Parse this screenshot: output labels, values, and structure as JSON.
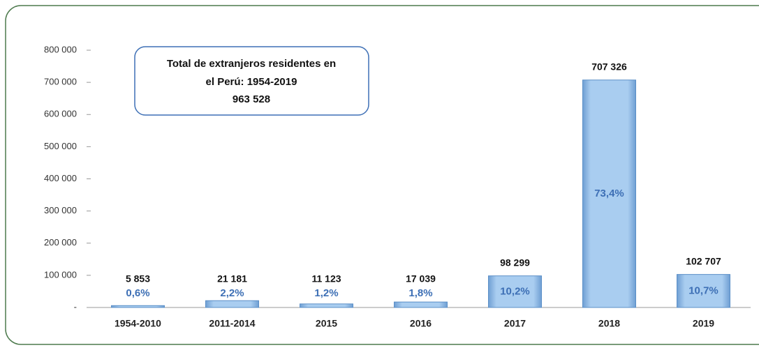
{
  "chart_data": {
    "type": "bar",
    "annotation": [
      "Total de extranjeros residentes en",
      "el Perú: 1954-2019",
      "963 528"
    ],
    "categories": [
      "1954-2010",
      "2011-2014",
      "2015",
      "2016",
      "2017",
      "2018",
      "2019"
    ],
    "values": [
      5853,
      21181,
      11123,
      17039,
      98299,
      707326,
      102707
    ],
    "value_labels": [
      "5 853",
      "21 181",
      "11 123",
      "17 039",
      "98 299",
      "707 326",
      "102 707"
    ],
    "share_labels": [
      "0,6%",
      "2,2%",
      "1,2%",
      "1,8%",
      "10,2%",
      "73,4%",
      "10,7%"
    ],
    "color": "#a9cdf0",
    "ylim": [
      0,
      800000
    ],
    "yticks": [
      {
        "value": 0,
        "label": "-"
      },
      {
        "value": 100000,
        "label": "100 000"
      },
      {
        "value": 200000,
        "label": "200 000"
      },
      {
        "value": 300000,
        "label": "300 000"
      },
      {
        "value": 400000,
        "label": "400 000"
      },
      {
        "value": 500000,
        "label": "500 000"
      },
      {
        "value": 600000,
        "label": "600 000"
      },
      {
        "value": 700000,
        "label": "700 000"
      },
      {
        "value": 800000,
        "label": "800 000"
      }
    ],
    "grid": false
  }
}
